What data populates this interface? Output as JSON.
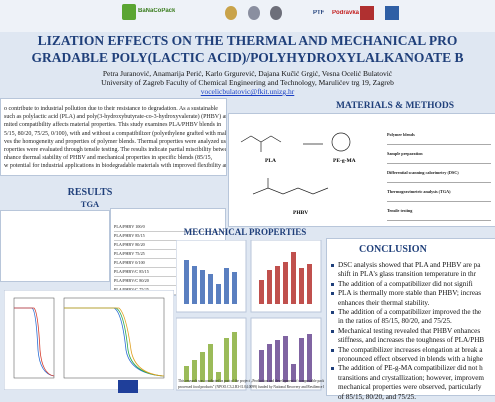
{
  "header": {
    "logo_text": "BaNaCoPack",
    "partners": [
      "PTF",
      "Podravka"
    ],
    "title_lines": [
      "LIZATION EFFECTS ON THE THERMAL AND MECHANICAL PRO",
      "GRADABLE POLY(LACTIC ACID)/POLYHYDROXYLALKANOATE B"
    ],
    "authors": "Petra Juranović, Anamarija Perić, Karlo Grgurević, Dajana Kučić Grgić, Vesna Ocelić Bulatović",
    "affiliation": "University of Zagreb Faculty of Chemical Engineering and Technology, Marulićev trg 19, Zagreb",
    "email": "vocelicbulatovic@fkit.unizg.hr"
  },
  "abstract": {
    "lines": [
      "o contribute to industrial pollution due to their resistance to degradation. As a sustainable",
      "such as polylactic acid (PLA) and poly(3-hydroxybutyrate-co-3-hydroxyvalerate) (PHBV) are",
      "mited compatibility affects material properties. This study examines PLA/PHBV blends in",
      "5/15, 80/20, 75/25, 0/100), with and without a compatibilizer (polyethylene grafted with maleic",
      "ves the homogeneity and properties of polymer blends. Thermal properties were analyzed using",
      "roperties were evaluated through tensile testing. The results indicate partial miscibility between",
      "nhance thermal stability of PHBV and mechanical properties in specific blends (85/15,",
      "w potential for industrial applications in biodegradable materials with improved flexibility and"
    ]
  },
  "results": {
    "heading": "RESULTS",
    "tga_heading": "TGA",
    "table_rows": [
      "PLA/PHBV 100/0",
      "PLA/PHBV 85/15",
      "PLA/PHBV 80/20",
      "PLA/PHBV 75/25",
      "PLA/PHBV 0/100",
      "PLA/PHBV/C 85/15",
      "PLA/PHBV/C 80/20",
      "PLA/PHBV/C 75/25"
    ]
  },
  "methods": {
    "heading": "MATERIALS & METHODS",
    "compounds": [
      "PLA",
      "PE-g-MA",
      "PHBV"
    ],
    "table_rows": [
      "Polymer blends",
      "Sample preparation",
      "Differential scanning calorimetry (DSC)",
      "Thermogravimetric analysis (TGA)",
      "Tensile testing"
    ]
  },
  "mechanical": {
    "heading": "MECHANICAL PROPERTIES"
  },
  "conclusion": {
    "heading": "CONCLUSION",
    "items": [
      [
        "DSC analysis showed that PLA and PHBV are pa",
        "shift in PLA's glass transition temperature in thr"
      ],
      [
        "The addition of a compatibilizer did not signifi"
      ],
      [
        "PLA is thermally more stable than PHBV; increas",
        "enhances their thermal stability."
      ],
      [
        "The addition of a compatibilizer improved the the",
        "in the ratios of 85/15, 80/20, and 75/25."
      ],
      [
        "Mechanical testing revealed that PHBV enhances",
        "stiffness, and increases the toughness of PLA/PHB"
      ],
      [
        "The compatibilizer increases elongation at break a",
        "pronounced effect observed in blends with a highe"
      ],
      [
        "The addition of PE-g-MA compatibilizer did not h",
        "transitions and crystallization; however, improvem",
        "mechanical properties were observed, particularly",
        "of 85/15, 80/20, and 75/25."
      ]
    ]
  },
  "footer": {
    "lines": [
      "This research was conducted as part of the project „Production and development of compostable packaging from waste biomass for the packaging of industrial",
      "processed food products\" (NPOO.C3.2.R3-I1.04.0099) funded by National Recovery and Resilience Plan (financed by the European Union, NextGenerationEU)."
    ]
  }
}
